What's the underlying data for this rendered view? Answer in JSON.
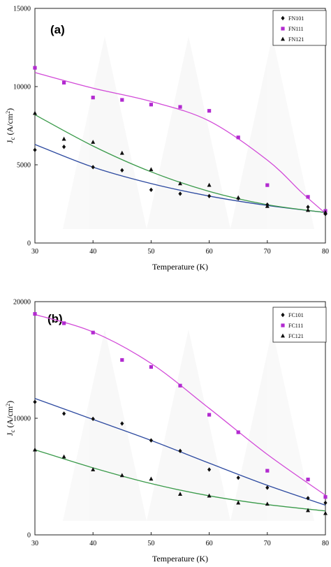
{
  "chart_data": [
    {
      "type": "scatter",
      "panel_label": "(a)",
      "xlabel": "Temperature (K)",
      "ylabel_main": "J",
      "ylabel_sub": "c",
      "ylabel_rest": " (A/cm",
      "ylabel_sup": "2",
      "ylabel_end": ")",
      "xlim": [
        30,
        80
      ],
      "ylim": [
        0,
        15000
      ],
      "xticks": [
        "30",
        "40",
        "50",
        "60",
        "70",
        "80"
      ],
      "yticks": [
        "0",
        "5000",
        "10000",
        "15000"
      ],
      "legend_position": "top-right",
      "series": [
        {
          "name": "FN101",
          "marker": "diamond",
          "color": "#0f0f0f",
          "line_color": "#2d4aa0",
          "x": [
            30,
            35,
            40,
            45,
            50,
            55,
            60,
            65,
            70,
            77,
            80
          ],
          "y": [
            5950,
            6150,
            4850,
            4650,
            3400,
            3150,
            3000,
            2850,
            2450,
            2300,
            1850
          ],
          "fit": [
            [
              30,
              6300
            ],
            [
              40,
              4850
            ],
            [
              50,
              3800
            ],
            [
              60,
              3000
            ],
            [
              70,
              2400
            ],
            [
              80,
              1950
            ]
          ]
        },
        {
          "name": "FN111",
          "marker": "square",
          "color": "#b22ad0",
          "line_color": "#d24ad8",
          "x": [
            30,
            35,
            40,
            45,
            50,
            55,
            60,
            65,
            70,
            77,
            80
          ],
          "y": [
            11200,
            10250,
            9300,
            9150,
            8850,
            8700,
            8450,
            6750,
            3700,
            2950,
            2050
          ],
          "fit": [
            [
              30,
              10900
            ],
            [
              40,
              9900
            ],
            [
              50,
              9050
            ],
            [
              60,
              7800
            ],
            [
              70,
              5300
            ],
            [
              76,
              3200
            ],
            [
              80,
              1900
            ]
          ]
        },
        {
          "name": "FN121",
          "marker": "triangle",
          "color": "#0f0f0f",
          "line_color": "#3a9a4a",
          "x": [
            30,
            35,
            40,
            45,
            50,
            55,
            60,
            65,
            70,
            77,
            80
          ],
          "y": [
            8300,
            6650,
            6450,
            5750,
            4700,
            3800,
            3700,
            2900,
            2350,
            2100,
            1950
          ],
          "fit": [
            [
              30,
              8200
            ],
            [
              40,
              6200
            ],
            [
              50,
              4550
            ],
            [
              60,
              3300
            ],
            [
              70,
              2450
            ],
            [
              80,
              1950
            ]
          ]
        }
      ]
    },
    {
      "type": "scatter",
      "panel_label": "(b)",
      "xlabel": "Temperature (K)",
      "ylabel_main": "J",
      "ylabel_sub": "c",
      "ylabel_rest": " (A/cm",
      "ylabel_sup": "2",
      "ylabel_end": ")",
      "xlim": [
        30,
        80
      ],
      "ylim": [
        0,
        20000
      ],
      "xticks": [
        "30",
        "40",
        "50",
        "60",
        "70",
        "80"
      ],
      "yticks": [
        "0",
        "10000",
        "20000"
      ],
      "legend_position": "top-right",
      "series": [
        {
          "name": "FC101",
          "marker": "diamond",
          "color": "#0f0f0f",
          "line_color": "#2d4aa0",
          "x": [
            30,
            35,
            40,
            45,
            50,
            55,
            60,
            65,
            70,
            77,
            80
          ],
          "y": [
            11400,
            10400,
            9950,
            9550,
            8100,
            7200,
            5600,
            4900,
            4050,
            3150,
            2750
          ],
          "fit": [
            [
              30,
              11700
            ],
            [
              40,
              9900
            ],
            [
              50,
              8100
            ],
            [
              60,
              6150
            ],
            [
              70,
              4250
            ],
            [
              80,
              2550
            ]
          ]
        },
        {
          "name": "FC111",
          "marker": "square",
          "color": "#b22ad0",
          "line_color": "#d24ad8",
          "x": [
            30,
            35,
            40,
            45,
            50,
            55,
            60,
            65,
            70,
            77,
            80
          ],
          "y": [
            18950,
            18150,
            17350,
            15000,
            14400,
            12800,
            10300,
            8800,
            5500,
            4750,
            3250
          ],
          "fit": [
            [
              30,
              18900
            ],
            [
              40,
              17400
            ],
            [
              50,
              14700
            ],
            [
              60,
              10850
            ],
            [
              70,
              6900
            ],
            [
              80,
              3400
            ]
          ]
        },
        {
          "name": "FC121",
          "marker": "triangle",
          "color": "#0f0f0f",
          "line_color": "#3a9a4a",
          "x": [
            30,
            35,
            40,
            45,
            50,
            55,
            60,
            65,
            70,
            77,
            80
          ],
          "y": [
            7300,
            6700,
            5600,
            5100,
            4800,
            3500,
            3350,
            2750,
            2650,
            2100,
            1850
          ],
          "fit": [
            [
              30,
              7300
            ],
            [
              40,
              5750
            ],
            [
              50,
              4400
            ],
            [
              60,
              3350
            ],
            [
              70,
              2600
            ],
            [
              80,
              2050
            ]
          ]
        }
      ]
    }
  ]
}
